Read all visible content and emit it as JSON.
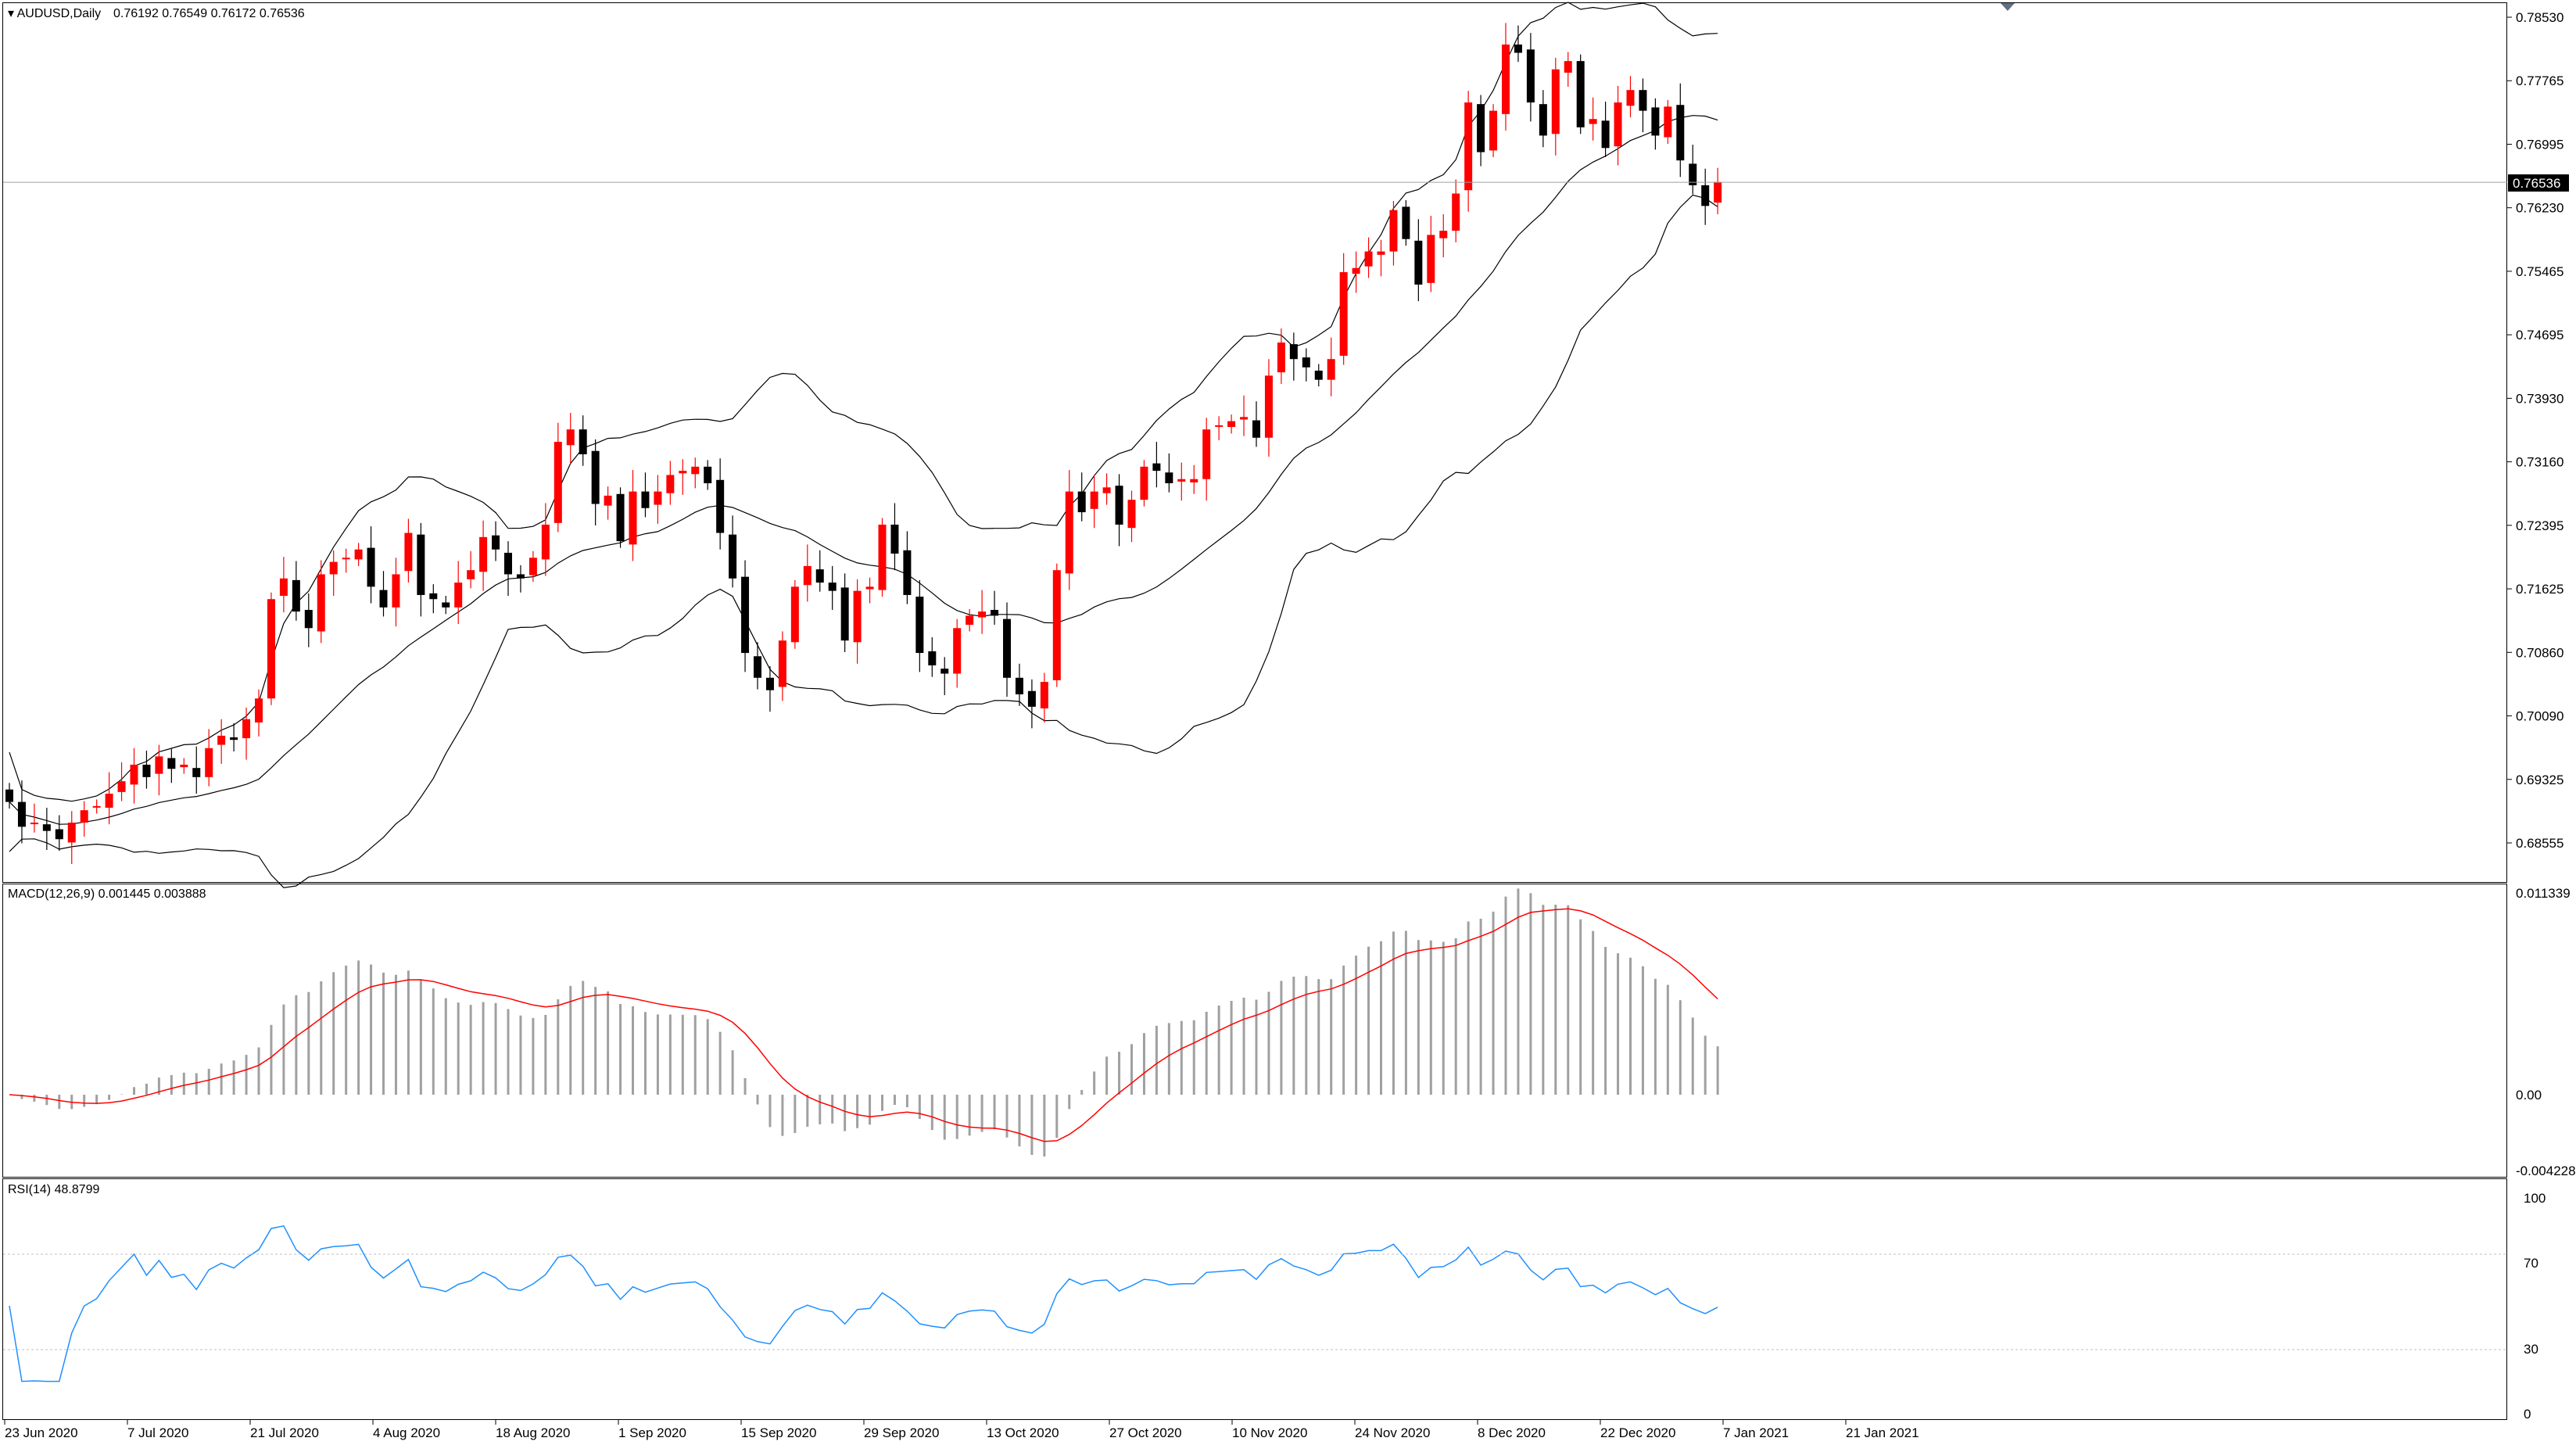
{
  "header": {
    "main_title": "AUDUSD,Daily",
    "ohlc": "0.76192 0.76549 0.76172 0.76536",
    "macd_title": "MACD(12,26,9) 0.001445 0.003888",
    "rsi_title": "RSI(14) 48.8799"
  },
  "current_price": "0.76536",
  "colors": {
    "bull": "#ff0000",
    "bear": "#000000",
    "bands": "#000000",
    "macd_hist": "#a0a0a0",
    "macd_signal": "#ff0000",
    "rsi": "#1e90ff",
    "grid": "#808080"
  },
  "price_axis": [
    "0.78530",
    "0.77765",
    "0.76995",
    "0.76230",
    "0.75465",
    "0.74695",
    "0.73930",
    "0.73160",
    "0.72395",
    "0.71625",
    "0.70860",
    "0.70090",
    "0.69325",
    "0.68555"
  ],
  "macd_axis": [
    "0.011339",
    "0.00",
    "-0.004228"
  ],
  "rsi_axis": [
    "100",
    "70",
    "30",
    "0"
  ],
  "date_axis": [
    "23 Jun 2020",
    "7 Jul 2020",
    "21 Jul 2020",
    "4 Aug 2020",
    "18 Aug 2020",
    "1 Sep 2020",
    "15 Sep 2020",
    "29 Sep 2020",
    "13 Oct 2020",
    "27 Oct 2020",
    "10 Nov 2020",
    "24 Nov 2020",
    "8 Dec 2020",
    "22 Dec 2020",
    "7 Jan 2021",
    "21 Jan 2021"
  ],
  "chart_data": [
    {
      "type": "candlestick",
      "title": "AUDUSD,Daily",
      "series": [
        {
          "name": "Bollinger",
          "values": []
        }
      ],
      "close": [
        0.6905,
        0.6875,
        0.688,
        0.687,
        0.686,
        0.688,
        0.6895,
        0.69,
        0.6915,
        0.693,
        0.695,
        0.6935,
        0.696,
        0.6945,
        0.695,
        0.6935,
        0.697,
        0.6985,
        0.698,
        0.7005,
        0.703,
        0.715,
        0.7175,
        0.7135,
        0.7115,
        0.718,
        0.7195,
        0.72,
        0.721,
        0.7165,
        0.714,
        0.718,
        0.723,
        0.7155,
        0.715,
        0.714,
        0.717,
        0.7185,
        0.7225,
        0.721,
        0.718,
        0.7175,
        0.72,
        0.724,
        0.734,
        0.7355,
        0.7325,
        0.7265,
        0.7275,
        0.722,
        0.728,
        0.726,
        0.728,
        0.73,
        0.7305,
        0.731,
        0.729,
        0.723,
        0.7175,
        0.7085,
        0.7055,
        0.704,
        0.71,
        0.7165,
        0.719,
        0.717,
        0.716,
        0.71,
        0.716,
        0.7165,
        0.724,
        0.7205,
        0.7155,
        0.7085,
        0.707,
        0.706,
        0.7115,
        0.713,
        0.7135,
        0.713,
        0.7055,
        0.7035,
        0.702,
        0.705,
        0.7185,
        0.728,
        0.7255,
        0.728,
        0.7285,
        0.724,
        0.727,
        0.731,
        0.7305,
        0.729,
        0.7295,
        0.7295,
        0.7355,
        0.736,
        0.7365,
        0.737,
        0.7345,
        0.742,
        0.746,
        0.744,
        0.743,
        0.7415,
        0.744,
        0.7545,
        0.755,
        0.757,
        0.757,
        0.762,
        0.7585,
        0.753,
        0.759,
        0.7595,
        0.764,
        0.775,
        0.769,
        0.774,
        0.782,
        0.781,
        0.775,
        0.771,
        0.779,
        0.78,
        0.772,
        0.773,
        0.7695,
        0.775,
        0.7765,
        0.774,
        0.771,
        0.7745,
        0.768,
        0.765,
        0.7625,
        0.7654
      ],
      "rsi_level": 48.88,
      "macd_value": 0.001445,
      "macd_signal": 0.003888
    }
  ]
}
